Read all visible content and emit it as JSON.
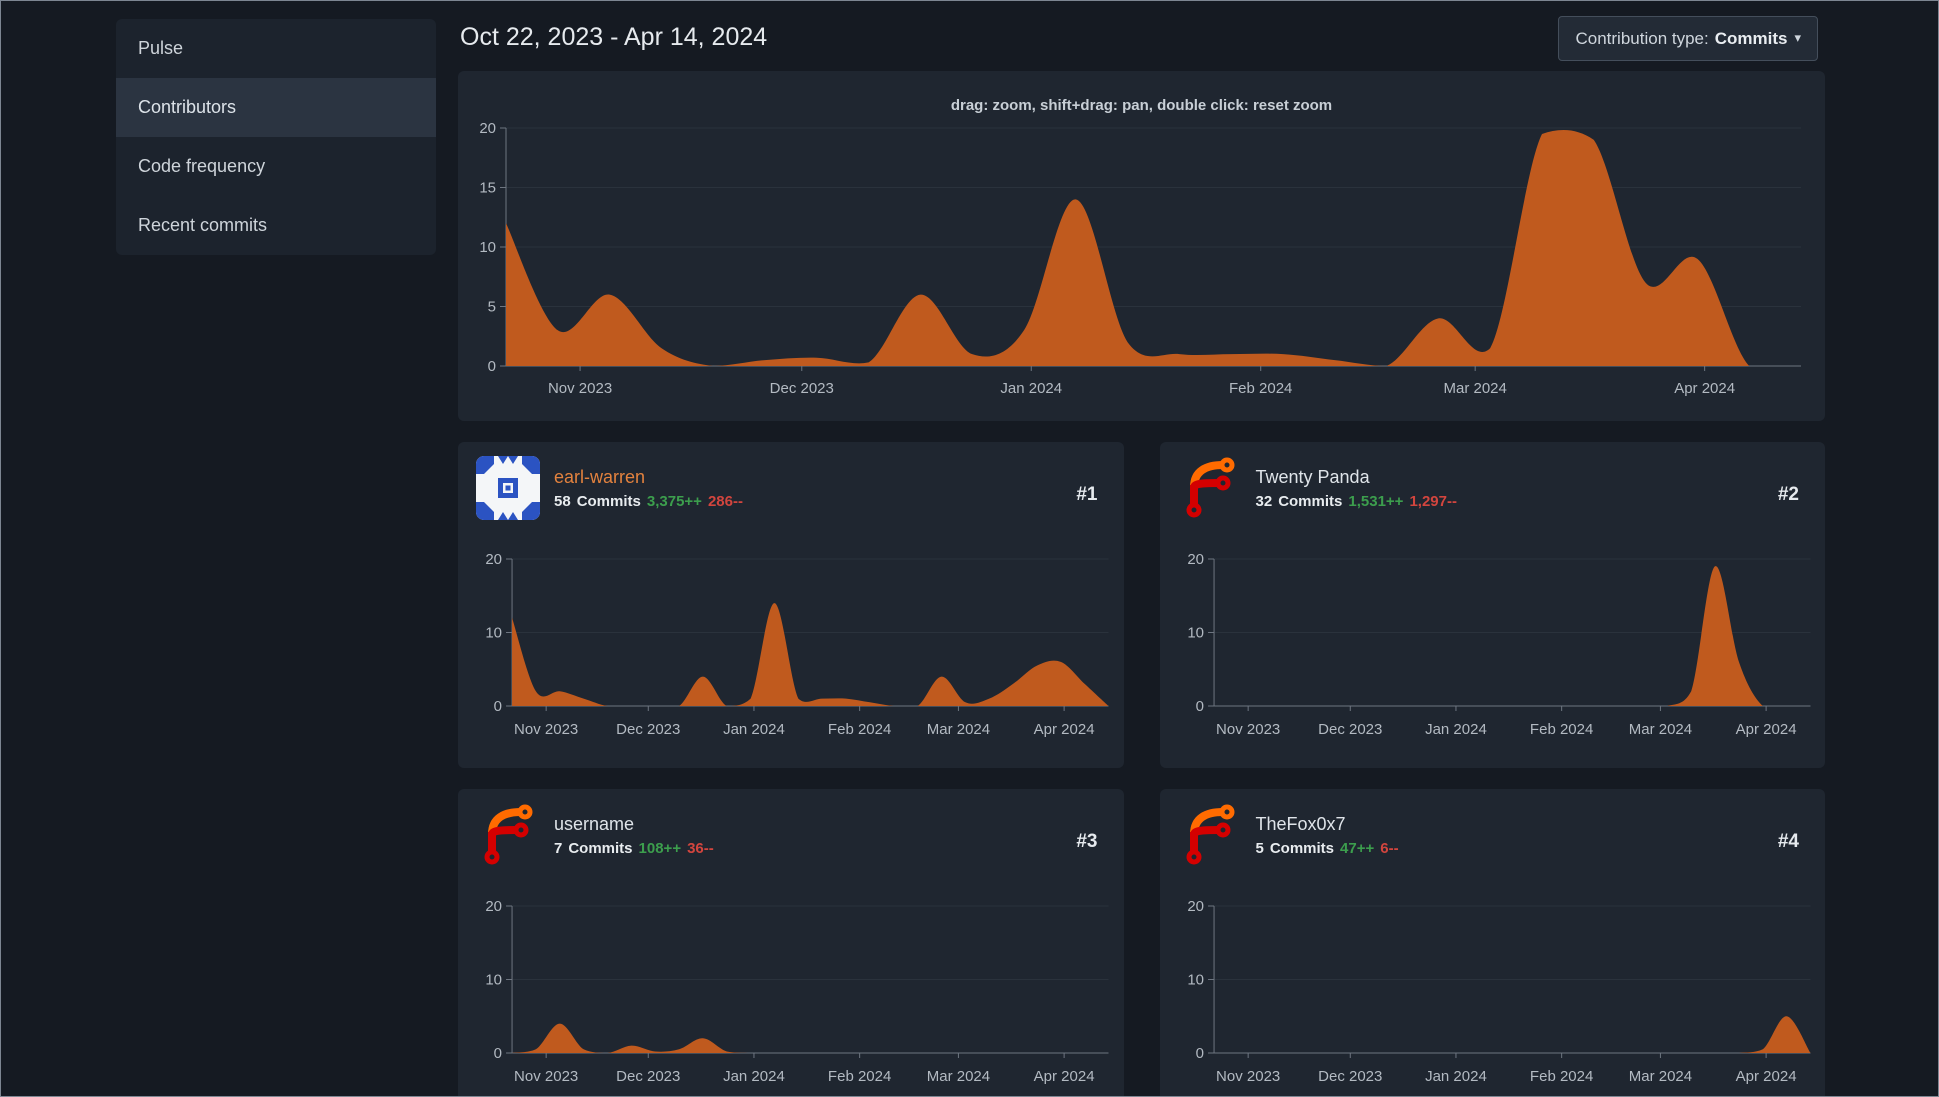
{
  "page": {
    "date_range": "Oct 22, 2023 - Apr 14, 2024"
  },
  "sidebar": {
    "items": [
      {
        "label": "Pulse",
        "active": false
      },
      {
        "label": "Contributors",
        "active": true
      },
      {
        "label": "Code frequency",
        "active": false
      },
      {
        "label": "Recent commits",
        "active": false
      }
    ]
  },
  "toolbar": {
    "contribution_type_label": "Contribution type:",
    "contribution_type_value": "Commits",
    "caret": "▾"
  },
  "main_chart_hint": "drag: zoom, shift+drag: pan, double click: reset zoom",
  "colors": {
    "page_bg": "#151a22",
    "card_bg": "#1f2630",
    "chart_area": "#c05a1e",
    "grid_line": "#2a323c",
    "axis_line": "#6e7681",
    "axis_label": "#b3bac2",
    "additions": "#3c9e4d",
    "deletions": "#d2453e",
    "link_orange": "#e3823e"
  },
  "contributors": [
    {
      "rank": "#1",
      "name": "earl-warren",
      "name_color": "#e3823e",
      "commits_count": "58",
      "commits_label": "Commits",
      "additions": "3,375++",
      "deletions": "286--",
      "avatar": "identicon-blue"
    },
    {
      "rank": "#2",
      "name": "Twenty Panda",
      "name_color": "",
      "commits_count": "32",
      "commits_label": "Commits",
      "additions": "1,531++",
      "deletions": "1,297--",
      "avatar": "forgejo-logo"
    },
    {
      "rank": "#3",
      "name": "username",
      "name_color": "",
      "commits_count": "7",
      "commits_label": "Commits",
      "additions": "108++",
      "deletions": "36--",
      "avatar": "forgejo-logo"
    },
    {
      "rank": "#4",
      "name": "TheFox0x7",
      "name_color": "",
      "commits_count": "5",
      "commits_label": "Commits",
      "additions": "47++",
      "deletions": "6--",
      "avatar": "forgejo-logo"
    }
  ],
  "chart_data": [
    {
      "id": "all-contributors-commits",
      "type": "area",
      "x_unit": "week",
      "x_start": "Oct 22, 2023",
      "x_end": "Apr 14, 2024",
      "n_points": 26,
      "x_tick_labels": [
        "Nov 2023",
        "Dec 2023",
        "Jan 2024",
        "Feb 2024",
        "Mar 2024",
        "Apr 2024"
      ],
      "x_tick_positions": [
        1.43,
        5.71,
        10.14,
        14.57,
        18.71,
        23.14
      ],
      "ylim": [
        0,
        20
      ],
      "y_ticks": [
        0,
        5,
        10,
        15,
        20
      ],
      "values": [
        12,
        3,
        6,
        1.5,
        0,
        0.5,
        0.7,
        0.3,
        6,
        1,
        3,
        14,
        2,
        1,
        1,
        1,
        0.5,
        0,
        4,
        1.5,
        19.5,
        19,
        7,
        9,
        0,
        0
      ]
    },
    {
      "id": "earl-warren-commits",
      "type": "area",
      "x_unit": "week",
      "x_start": "Oct 22, 2023",
      "x_end": "Apr 14, 2024",
      "n_points": 26,
      "x_tick_labels": [
        "Nov 2023",
        "Dec 2023",
        "Jan 2024",
        "Feb 2024",
        "Mar 2024",
        "Apr 2024"
      ],
      "x_tick_positions": [
        1.43,
        5.71,
        10.14,
        14.57,
        18.71,
        23.14
      ],
      "ylim": [
        0,
        20
      ],
      "y_ticks": [
        0,
        10,
        20
      ],
      "values": [
        12,
        2,
        2,
        1,
        0,
        0,
        0,
        0,
        4,
        0,
        1,
        14,
        1,
        1,
        1,
        0.5,
        0,
        0,
        4,
        0.5,
        1,
        3,
        5.5,
        6,
        3,
        0
      ]
    },
    {
      "id": "twenty-panda-commits",
      "type": "area",
      "x_unit": "week",
      "x_start": "Oct 22, 2023",
      "x_end": "Apr 14, 2024",
      "n_points": 26,
      "x_tick_labels": [
        "Nov 2023",
        "Dec 2023",
        "Jan 2024",
        "Feb 2024",
        "Mar 2024",
        "Apr 2024"
      ],
      "x_tick_positions": [
        1.43,
        5.71,
        10.14,
        14.57,
        18.71,
        23.14
      ],
      "ylim": [
        0,
        20
      ],
      "y_ticks": [
        0,
        10,
        20
      ],
      "values": [
        0,
        0,
        0,
        0,
        0,
        0,
        0,
        0,
        0,
        0,
        0,
        0,
        0,
        0,
        0,
        0,
        0,
        0,
        0,
        0,
        2,
        19,
        6,
        0,
        0,
        0
      ]
    },
    {
      "id": "username-commits",
      "type": "area",
      "x_unit": "week",
      "x_start": "Oct 22, 2023",
      "x_end": "Apr 14, 2024",
      "n_points": 26,
      "x_tick_labels": [
        "Nov 2023",
        "Dec 2023",
        "Jan 2024",
        "Feb 2024",
        "Mar 2024",
        "Apr 2024"
      ],
      "x_tick_positions": [
        1.43,
        5.71,
        10.14,
        14.57,
        18.71,
        23.14
      ],
      "ylim": [
        0,
        20
      ],
      "y_ticks": [
        0,
        10,
        20
      ],
      "values": [
        0,
        0.5,
        4,
        0.5,
        0,
        1,
        0.2,
        0.5,
        2,
        0.2,
        0,
        0,
        0,
        0,
        0,
        0,
        0,
        0,
        0,
        0,
        0,
        0,
        0,
        0,
        0,
        0
      ]
    },
    {
      "id": "thefox0x7-commits",
      "type": "area",
      "x_unit": "week",
      "x_start": "Oct 22, 2023",
      "x_end": "Apr 14, 2024",
      "n_points": 26,
      "x_tick_labels": [
        "Nov 2023",
        "Dec 2023",
        "Jan 2024",
        "Feb 2024",
        "Mar 2024",
        "Apr 2024"
      ],
      "x_tick_positions": [
        1.43,
        5.71,
        10.14,
        14.57,
        18.71,
        23.14
      ],
      "ylim": [
        0,
        20
      ],
      "y_ticks": [
        0,
        10,
        20
      ],
      "values": [
        0,
        0,
        0,
        0,
        0,
        0,
        0,
        0,
        0,
        0,
        0,
        0,
        0,
        0,
        0,
        0,
        0,
        0,
        0,
        0,
        0,
        0,
        0,
        0.5,
        5,
        0
      ]
    }
  ]
}
